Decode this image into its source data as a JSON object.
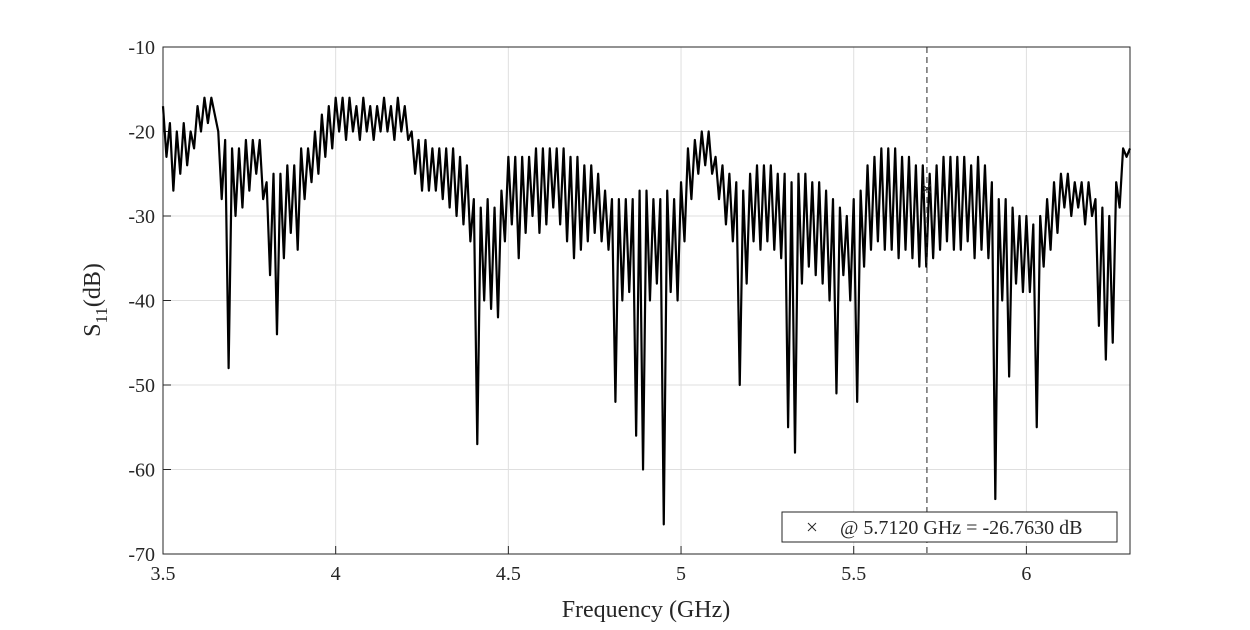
{
  "chart_data": {
    "type": "line",
    "x_label": "Frequency (GHz)",
    "y_label": {
      "symbol": "S",
      "subscript": "11",
      "unit": "(dB)"
    },
    "xlim": [
      3.5,
      6.3
    ],
    "xticks": [
      3.5,
      4,
      4.5,
      5,
      5.5,
      6
    ],
    "ylim": [
      -70,
      -10
    ],
    "yticks": [
      -70,
      -60,
      -50,
      -40,
      -30,
      -20,
      -10
    ],
    "grid": true,
    "color": "#000000",
    "x": [
      3.5,
      3.51,
      3.52,
      3.53,
      3.54,
      3.55,
      3.56,
      3.57,
      3.58,
      3.59,
      3.6,
      3.61,
      3.62,
      3.63,
      3.64,
      3.65,
      3.66,
      3.67,
      3.68,
      3.69,
      3.7,
      3.71,
      3.72,
      3.73,
      3.74,
      3.75,
      3.76,
      3.77,
      3.78,
      3.79,
      3.8,
      3.81,
      3.82,
      3.83,
      3.84,
      3.85,
      3.86,
      3.87,
      3.88,
      3.89,
      3.9,
      3.91,
      3.92,
      3.93,
      3.94,
      3.95,
      3.96,
      3.97,
      3.98,
      3.99,
      4,
      4.01,
      4.02,
      4.03,
      4.04,
      4.05,
      4.06,
      4.07,
      4.08,
      4.09,
      4.1,
      4.11,
      4.12,
      4.13,
      4.14,
      4.15,
      4.16,
      4.17,
      4.18,
      4.19,
      4.2,
      4.21,
      4.22,
      4.23,
      4.24,
      4.25,
      4.26,
      4.27,
      4.28,
      4.29,
      4.3,
      4.31,
      4.32,
      4.33,
      4.34,
      4.35,
      4.36,
      4.37,
      4.38,
      4.39,
      4.4,
      4.41,
      4.42,
      4.43,
      4.44,
      4.45,
      4.46,
      4.47,
      4.48,
      4.49,
      4.5,
      4.51,
      4.52,
      4.53,
      4.54,
      4.55,
      4.56,
      4.57,
      4.58,
      4.59,
      4.6,
      4.61,
      4.62,
      4.63,
      4.64,
      4.65,
      4.66,
      4.67,
      4.68,
      4.69,
      4.7,
      4.71,
      4.72,
      4.73,
      4.74,
      4.75,
      4.76,
      4.77,
      4.78,
      4.79,
      4.8,
      4.81,
      4.82,
      4.83,
      4.84,
      4.85,
      4.86,
      4.87,
      4.88,
      4.89,
      4.9,
      4.91,
      4.92,
      4.93,
      4.94,
      4.95,
      4.96,
      4.97,
      4.98,
      4.99,
      5,
      5.01,
      5.02,
      5.03,
      5.04,
      5.05,
      5.06,
      5.07,
      5.08,
      5.09,
      5.1,
      5.11,
      5.12,
      5.13,
      5.14,
      5.15,
      5.16,
      5.17,
      5.18,
      5.19,
      5.2,
      5.21,
      5.22,
      5.23,
      5.24,
      5.25,
      5.26,
      5.27,
      5.28,
      5.29,
      5.3,
      5.31,
      5.32,
      5.33,
      5.34,
      5.35,
      5.36,
      5.37,
      5.38,
      5.39,
      5.4,
      5.41,
      5.42,
      5.43,
      5.44,
      5.45,
      5.46,
      5.47,
      5.48,
      5.49,
      5.5,
      5.51,
      5.52,
      5.53,
      5.54,
      5.55,
      5.56,
      5.57,
      5.58,
      5.59,
      5.6,
      5.61,
      5.62,
      5.63,
      5.64,
      5.65,
      5.66,
      5.67,
      5.68,
      5.69,
      5.7,
      5.71,
      5.72,
      5.73,
      5.74,
      5.75,
      5.76,
      5.77,
      5.78,
      5.79,
      5.8,
      5.81,
      5.82,
      5.83,
      5.84,
      5.85,
      5.86,
      5.87,
      5.88,
      5.89,
      5.9,
      5.91,
      5.92,
      5.93,
      5.94,
      5.95,
      5.96,
      5.97,
      5.98,
      5.99,
      6,
      6.01,
      6.02,
      6.03,
      6.04,
      6.05,
      6.06,
      6.07,
      6.08,
      6.09,
      6.1,
      6.11,
      6.12,
      6.13,
      6.14,
      6.15,
      6.16,
      6.17,
      6.18,
      6.19,
      6.2,
      6.21,
      6.22,
      6.23,
      6.24,
      6.25,
      6.26,
      6.27,
      6.28,
      6.29,
      6.3
    ],
    "values": [
      -17,
      -23,
      -19,
      -27,
      -20,
      -25,
      -19,
      -24,
      -20,
      -22,
      -17,
      -20,
      -16,
      -19,
      -16,
      -18,
      -20,
      -28,
      -21,
      -48,
      -22,
      -30,
      -22,
      -29,
      -21,
      -27,
      -21,
      -25,
      -21,
      -28,
      -26,
      -37,
      -25,
      -44,
      -25,
      -35,
      -24,
      -32,
      -24,
      -34,
      -22,
      -28,
      -22,
      -26,
      -20,
      -25,
      -18,
      -23,
      -17,
      -22,
      -16,
      -20,
      -16,
      -21,
      -16,
      -20,
      -17,
      -21,
      -16,
      -20,
      -17,
      -21,
      -17,
      -20,
      -16,
      -20,
      -17,
      -21,
      -16,
      -20,
      -17,
      -21,
      -20,
      -25,
      -21,
      -27,
      -21,
      -27,
      -22,
      -27,
      -22,
      -28,
      -22,
      -29,
      -22,
      -30,
      -23,
      -31,
      -24,
      -33,
      -28,
      -57,
      -29,
      -40,
      -28,
      -41,
      -29,
      -42,
      -27,
      -33,
      -23,
      -31,
      -23,
      -35,
      -23,
      -32,
      -23,
      -30,
      -22,
      -32,
      -22,
      -31,
      -22,
      -29,
      -22,
      -31,
      -22,
      -33,
      -23,
      -35,
      -23,
      -34,
      -24,
      -33,
      -24,
      -32,
      -25,
      -33,
      -27,
      -34,
      -28,
      -52,
      -28,
      -40,
      -28,
      -39,
      -28,
      -56,
      -27,
      -60,
      -27,
      -40,
      -28,
      -38,
      -28,
      -66.5,
      -27,
      -39,
      -28,
      -40,
      -26,
      -33,
      -22,
      -28,
      -21,
      -25,
      -20,
      -24,
      -20,
      -25,
      -23,
      -28,
      -24,
      -31,
      -25,
      -33,
      -26,
      -50,
      -27,
      -38,
      -25,
      -33,
      -24,
      -34,
      -24,
      -33,
      -24,
      -34,
      -25,
      -35,
      -25,
      -55,
      -26,
      -58,
      -25,
      -38,
      -25,
      -36,
      -26,
      -37,
      -26,
      -38,
      -27,
      -40,
      -28,
      -51,
      -29,
      -37,
      -30,
      -40,
      -28,
      -52,
      -27,
      -36,
      -24,
      -34,
      -23,
      -33,
      -22,
      -34,
      -22,
      -34,
      -22,
      -35,
      -23,
      -34,
      -23,
      -35,
      -24,
      -36,
      -24,
      -36,
      -25,
      -35,
      -24,
      -34,
      -23,
      -33,
      -23,
      -34,
      -23,
      -34,
      -23,
      -33,
      -24,
      -35,
      -23,
      -34,
      -24,
      -35,
      -26,
      -63.5,
      -28,
      -40,
      -28,
      -49,
      -29,
      -38,
      -30,
      -39,
      -30,
      -39,
      -31,
      -55,
      -30,
      -36,
      -28,
      -34,
      -26,
      -32,
      -25,
      -29,
      -25,
      -30,
      -26,
      -29,
      -26,
      -31,
      -26,
      -30,
      -28,
      -43,
      -29,
      -47,
      -30,
      -45,
      -26,
      -29,
      -22,
      -23,
      -22
    ],
    "marker": {
      "x": 5.712,
      "y": -26.763,
      "label": "@ 5.7120 GHz = -26.7630 dB"
    }
  }
}
